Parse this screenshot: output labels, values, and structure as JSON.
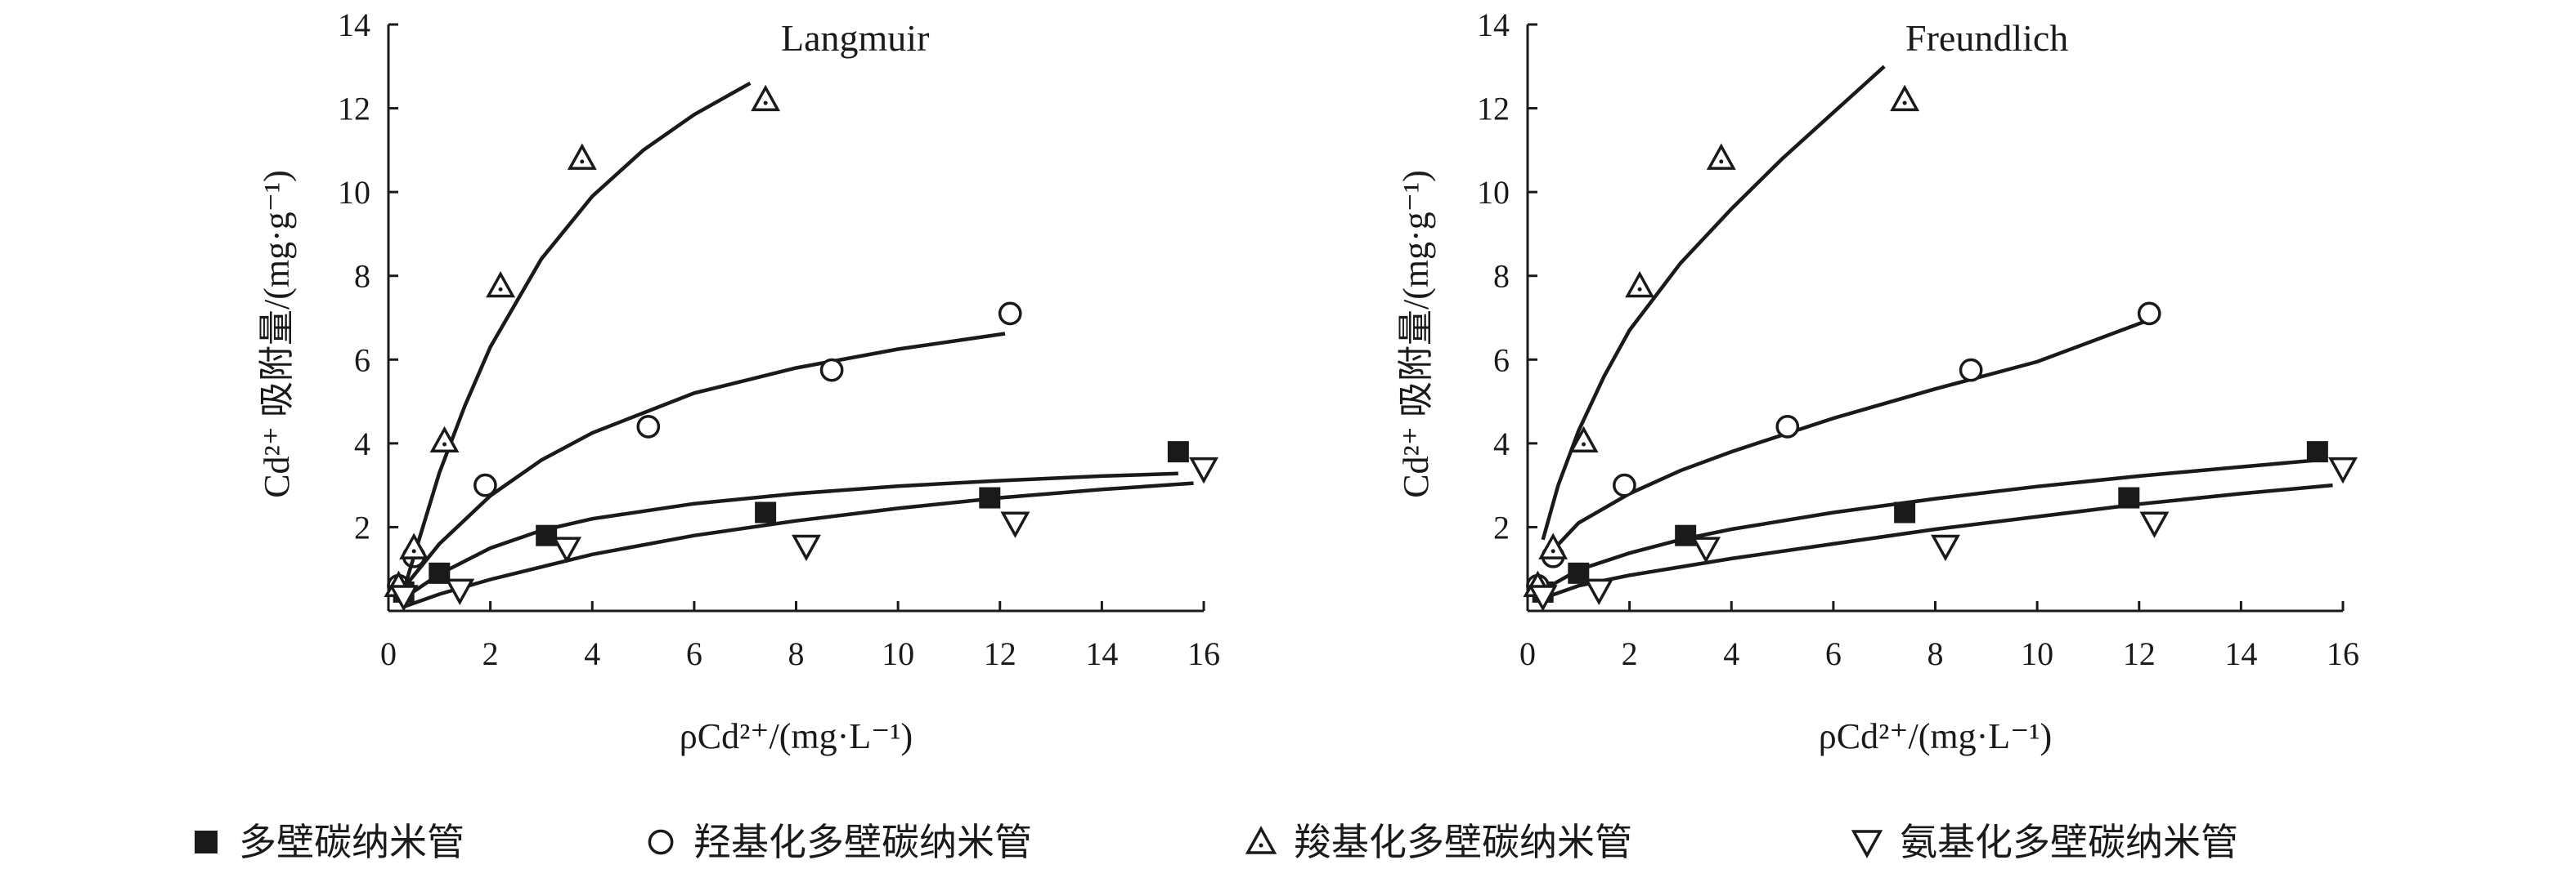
{
  "legend": [
    {
      "key": "mwcnt",
      "label": "多壁碳纳米管"
    },
    {
      "key": "oh",
      "label": "羟基化多壁碳纳米管"
    },
    {
      "key": "cooh",
      "label": "羧基化多壁碳纳米管"
    },
    {
      "key": "nh2",
      "label": "氨基化多壁碳纳米管"
    }
  ],
  "chart_data": [
    {
      "type": "scatter",
      "annotation": "Langmuir",
      "ylabel": "Cd²⁺ 吸附量/(mg·g⁻¹)",
      "xlabel": "ρCd²⁺/(mg·L⁻¹)",
      "xlim": [
        0,
        16
      ],
      "ylim": [
        0,
        14
      ],
      "xticks": [
        0,
        2,
        4,
        6,
        8,
        10,
        12,
        14,
        16
      ],
      "yticks": [
        2,
        4,
        6,
        8,
        10,
        12,
        14
      ],
      "grid": false,
      "series": [
        {
          "key": "mwcnt",
          "name": "多壁碳纳米管",
          "marker": "square",
          "points": [
            [
              0.3,
              0.45
            ],
            [
              1.0,
              0.9
            ],
            [
              3.1,
              1.8
            ],
            [
              7.4,
              2.35
            ],
            [
              11.8,
              2.7
            ],
            [
              15.5,
              3.8
            ]
          ],
          "fit_line": [
            [
              0.3,
              0.3
            ],
            [
              1,
              0.88
            ],
            [
              2,
              1.5
            ],
            [
              3,
              1.92
            ],
            [
              4,
              2.2
            ],
            [
              6,
              2.56
            ],
            [
              8,
              2.8
            ],
            [
              10,
              2.98
            ],
            [
              12,
              3.11
            ],
            [
              14,
              3.22
            ],
            [
              15.5,
              3.28
            ]
          ]
        },
        {
          "key": "oh",
          "name": "羟基化多壁碳纳米管",
          "marker": "circle",
          "points": [
            [
              0.2,
              0.6
            ],
            [
              0.5,
              1.3
            ],
            [
              1.9,
              3.0
            ],
            [
              5.1,
              4.4
            ],
            [
              8.7,
              5.75
            ],
            [
              12.2,
              7.1
            ]
          ],
          "fit_line": [
            [
              0.3,
              0.55
            ],
            [
              1,
              1.6
            ],
            [
              2,
              2.75
            ],
            [
              3,
              3.6
            ],
            [
              4,
              4.25
            ],
            [
              6,
              5.2
            ],
            [
              8,
              5.8
            ],
            [
              10,
              6.25
            ],
            [
              12.1,
              6.62
            ]
          ]
        },
        {
          "key": "cooh",
          "name": "羧基化多壁碳纳米管",
          "marker": "triangle-up",
          "points": [
            [
              0.2,
              0.6
            ],
            [
              0.5,
              1.5
            ],
            [
              1.1,
              4.05
            ],
            [
              2.2,
              7.75
            ],
            [
              3.8,
              10.8
            ],
            [
              7.4,
              12.2
            ]
          ],
          "fit_line": [
            [
              0.3,
              0.5
            ],
            [
              0.6,
              1.7
            ],
            [
              1,
              3.3
            ],
            [
              1.5,
              4.9
            ],
            [
              2,
              6.3
            ],
            [
              3,
              8.4
            ],
            [
              4,
              9.9
            ],
            [
              5,
              11.0
            ],
            [
              6,
              11.85
            ],
            [
              7.1,
              12.6
            ]
          ]
        },
        {
          "key": "nh2",
          "name": "氨基化多壁碳纳米管",
          "marker": "triangle-down",
          "points": [
            [
              0.3,
              0.35
            ],
            [
              1.4,
              0.5
            ],
            [
              3.5,
              1.5
            ],
            [
              8.2,
              1.55
            ],
            [
              12.3,
              2.1
            ],
            [
              16.0,
              3.4
            ]
          ],
          "fit_line": [
            [
              0.3,
              0.1
            ],
            [
              1,
              0.4
            ],
            [
              2,
              0.75
            ],
            [
              4,
              1.35
            ],
            [
              6,
              1.8
            ],
            [
              8,
              2.15
            ],
            [
              10,
              2.45
            ],
            [
              12,
              2.7
            ],
            [
              14,
              2.9
            ],
            [
              15.8,
              3.05
            ]
          ]
        }
      ]
    },
    {
      "type": "scatter",
      "annotation": "Freundlich",
      "ylabel": "Cd²⁺ 吸附量/(mg·g⁻¹)",
      "xlabel": "ρCd²⁺/(mg·L⁻¹)",
      "xlim": [
        0,
        16
      ],
      "ylim": [
        0,
        14
      ],
      "xticks": [
        0,
        2,
        4,
        6,
        8,
        10,
        12,
        14,
        16
      ],
      "yticks": [
        2,
        4,
        6,
        8,
        10,
        12,
        14
      ],
      "grid": false,
      "series": [
        {
          "key": "mwcnt",
          "name": "多壁碳纳米管",
          "marker": "square",
          "points": [
            [
              0.3,
              0.45
            ],
            [
              1.0,
              0.9
            ],
            [
              3.1,
              1.8
            ],
            [
              7.4,
              2.35
            ],
            [
              11.8,
              2.7
            ],
            [
              15.5,
              3.8
            ]
          ],
          "fit_line": [
            [
              0.3,
              0.5
            ],
            [
              1,
              0.98
            ],
            [
              2,
              1.38
            ],
            [
              3,
              1.7
            ],
            [
              4,
              1.95
            ],
            [
              6,
              2.35
            ],
            [
              8,
              2.68
            ],
            [
              10,
              2.97
            ],
            [
              12,
              3.22
            ],
            [
              14,
              3.44
            ],
            [
              15.5,
              3.6
            ]
          ]
        },
        {
          "key": "oh",
          "name": "羟基化多壁碳纳米管",
          "marker": "circle",
          "points": [
            [
              0.2,
              0.6
            ],
            [
              0.5,
              1.3
            ],
            [
              1.9,
              3.0
            ],
            [
              5.1,
              4.4
            ],
            [
              8.7,
              5.75
            ],
            [
              12.2,
              7.1
            ]
          ],
          "fit_line": [
            [
              0.3,
              1.2
            ],
            [
              1,
              2.1
            ],
            [
              2,
              2.8
            ],
            [
              3,
              3.35
            ],
            [
              4,
              3.8
            ],
            [
              6,
              4.6
            ],
            [
              8,
              5.3
            ],
            [
              10,
              5.95
            ],
            [
              12.2,
              6.95
            ]
          ]
        },
        {
          "key": "cooh",
          "name": "羧基化多壁碳纳米管",
          "marker": "triangle-up",
          "points": [
            [
              0.2,
              0.6
            ],
            [
              0.5,
              1.5
            ],
            [
              1.1,
              4.05
            ],
            [
              2.2,
              7.75
            ],
            [
              3.8,
              10.8
            ],
            [
              7.4,
              12.2
            ]
          ],
          "fit_line": [
            [
              0.3,
              1.7
            ],
            [
              0.6,
              3.0
            ],
            [
              1,
              4.3
            ],
            [
              1.5,
              5.6
            ],
            [
              2,
              6.7
            ],
            [
              3,
              8.3
            ],
            [
              4,
              9.6
            ],
            [
              5,
              10.8
            ],
            [
              6,
              11.9
            ],
            [
              7,
              13.0
            ]
          ]
        },
        {
          "key": "nh2",
          "name": "氨基化多壁碳纳米管",
          "marker": "triangle-down",
          "points": [
            [
              0.3,
              0.35
            ],
            [
              1.4,
              0.5
            ],
            [
              3.5,
              1.5
            ],
            [
              8.2,
              1.55
            ],
            [
              12.3,
              2.1
            ],
            [
              16.0,
              3.4
            ]
          ],
          "fit_line": [
            [
              0.3,
              0.3
            ],
            [
              1,
              0.6
            ],
            [
              2,
              0.85
            ],
            [
              4,
              1.25
            ],
            [
              6,
              1.6
            ],
            [
              8,
              1.95
            ],
            [
              10,
              2.25
            ],
            [
              12,
              2.55
            ],
            [
              14,
              2.8
            ],
            [
              15.8,
              3.0
            ]
          ]
        }
      ]
    }
  ]
}
